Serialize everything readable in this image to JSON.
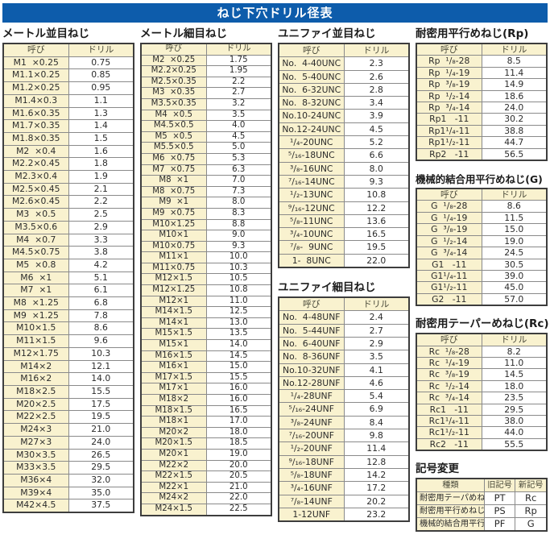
{
  "title": "ねじ下穴ドリル径表",
  "colors": {
    "title_bg": "#0d5cab",
    "cell_cream": "#f9f2cf",
    "border_dark": "#3d3d3d"
  },
  "tables": {
    "metric_coarse": {
      "heading": "メートル並目ねじ",
      "headers": [
        "呼び",
        "ドリル"
      ],
      "rows": [
        [
          "M1  ×0.25",
          "0.75"
        ],
        [
          "M1.1×0.25",
          "0.85"
        ],
        [
          "M1.2×0.25",
          "0.95"
        ],
        [
          "M1.4×0.3",
          "1.1"
        ],
        [
          "M1.6×0.35",
          "1.3"
        ],
        [
          "M1.7×0.35",
          "1.4"
        ],
        [
          "M1.8×0.35",
          "1.5"
        ],
        [
          "M2  ×0.4",
          "1.6"
        ],
        [
          "M2.2×0.45",
          "1.8"
        ],
        [
          "M2.3×0.4",
          "1.9"
        ],
        [
          "M2.5×0.45",
          "2.1"
        ],
        [
          "M2.6×0.45",
          "2.2"
        ],
        [
          "M3  ×0.5",
          "2.5"
        ],
        [
          "M3.5×0.6",
          "2.9"
        ],
        [
          "M4  ×0.7",
          "3.3"
        ],
        [
          "M4.5×0.75",
          "3.8"
        ],
        [
          "M5  ×0.8",
          "4.2"
        ],
        [
          "M6  ×1",
          "5.1"
        ],
        [
          "M7  ×1",
          "6.1"
        ],
        [
          "M8  ×1.25",
          "6.8"
        ],
        [
          "M9  ×1.25",
          "7.8"
        ],
        [
          "M10×1.5",
          "8.6"
        ],
        [
          "M11×1.5",
          "9.6"
        ],
        [
          "M12×1.75",
          "10.3"
        ],
        [
          "M14×2",
          "12.1"
        ],
        [
          "M16×2",
          "14.0"
        ],
        [
          "M18×2.5",
          "15.5"
        ],
        [
          "M20×2.5",
          "17.5"
        ],
        [
          "M22×2.5",
          "19.5"
        ],
        [
          "M24×3",
          "21.0"
        ],
        [
          "M27×3",
          "24.0"
        ],
        [
          "M30×3.5",
          "26.5"
        ],
        [
          "M33×3.5",
          "29.5"
        ],
        [
          "M36×4",
          "32.0"
        ],
        [
          "M39×4",
          "35.0"
        ],
        [
          "M42×4.5",
          "37.5"
        ]
      ]
    },
    "metric_fine": {
      "heading": "メートル細目ねじ",
      "headers": [
        "呼び",
        "ドリル"
      ],
      "rows": [
        [
          "M2  ×0.25",
          "1.75"
        ],
        [
          "M2.2×0.25",
          "1.95"
        ],
        [
          "M2.5×0.35",
          "2.2"
        ],
        [
          "M3  ×0.35",
          "2.7"
        ],
        [
          "M3.5×0.35",
          "3.2"
        ],
        [
          "M4  ×0.5",
          "3.5"
        ],
        [
          "M4.5×0.5",
          "4.0"
        ],
        [
          "M5  ×0.5",
          "4.5"
        ],
        [
          "M5.5×0.5",
          "5.0"
        ],
        [
          "M6  ×0.75",
          "5.3"
        ],
        [
          "M7  ×0.75",
          "6.3"
        ],
        [
          "M8  ×1",
          "7.0"
        ],
        [
          "M8  ×0.75",
          "7.3"
        ],
        [
          "M9  ×1",
          "8.0"
        ],
        [
          "M9  ×0.75",
          "8.3"
        ],
        [
          "M10×1.25",
          "8.8"
        ],
        [
          "M10×1",
          "9.0"
        ],
        [
          "M10×0.75",
          "9.3"
        ],
        [
          "M11×1",
          "10.0"
        ],
        [
          "M11×0.75",
          "10.3"
        ],
        [
          "M12×1.5",
          "10.5"
        ],
        [
          "M12×1.25",
          "10.8"
        ],
        [
          "M12×1",
          "11.0"
        ],
        [
          "M14×1.5",
          "12.5"
        ],
        [
          "M14×1",
          "13.0"
        ],
        [
          "M15×1.5",
          "13.5"
        ],
        [
          "M15×1",
          "14.0"
        ],
        [
          "M16×1.5",
          "14.5"
        ],
        [
          "M16×1",
          "15.0"
        ],
        [
          "M17×1.5",
          "15.5"
        ],
        [
          "M17×1",
          "16.0"
        ],
        [
          "M18×2",
          "16.0"
        ],
        [
          "M18×1.5",
          "16.5"
        ],
        [
          "M18×1",
          "17.0"
        ],
        [
          "M20×2",
          "18.0"
        ],
        [
          "M20×1.5",
          "18.5"
        ],
        [
          "M20×1",
          "19.0"
        ],
        [
          "M22×2",
          "20.0"
        ],
        [
          "M22×1.5",
          "20.5"
        ],
        [
          "M22×1",
          "21.0"
        ],
        [
          "M24×2",
          "22.0"
        ],
        [
          "M24×1.5",
          "22.5"
        ]
      ]
    },
    "unified_coarse": {
      "heading": "ユニファイ並目ねじ",
      "headers": [
        "呼び",
        "ドリル"
      ],
      "rows": [
        [
          "No.  4-40UNC",
          "2.3"
        ],
        [
          "No.  5-40UNC",
          "2.6"
        ],
        [
          "No.  6-32UNC",
          "2.8"
        ],
        [
          "No.  8-32UNC",
          "3.4"
        ],
        [
          "No.10-24UNC",
          "3.9"
        ],
        [
          "No.12-24UNC",
          "4.5"
        ],
        [
          "¹/₄-20UNC",
          "5.2"
        ],
        [
          "⁵/₁₆-18UNC",
          "6.6"
        ],
        [
          "³/₈-16UNC",
          "8.0"
        ],
        [
          "⁷/₁₆-14UNC",
          "9.3"
        ],
        [
          "¹/₂-13UNC",
          "10.8"
        ],
        [
          "⁹/₁₆-12UNC",
          "12.2"
        ],
        [
          "⁵/₈-11UNC",
          "13.6"
        ],
        [
          "³/₄-10UNC",
          "16.5"
        ],
        [
          "⁷/₈-  9UNC",
          "19.5"
        ],
        [
          "1-  8UNC",
          "22.0"
        ]
      ]
    },
    "unified_fine": {
      "heading": "ユニファイ細目ねじ",
      "headers": [
        "呼び",
        "ドリル"
      ],
      "rows": [
        [
          "No.  4-48UNF",
          "2.4"
        ],
        [
          "No.  5-44UNF",
          "2.7"
        ],
        [
          "No.  6-40UNF",
          "2.9"
        ],
        [
          "No.  8-36UNF",
          "3.5"
        ],
        [
          "No.10-32UNF",
          "4.1"
        ],
        [
          "No.12-28UNF",
          "4.6"
        ],
        [
          "¹/₄-28UNF",
          "5.4"
        ],
        [
          "⁵/₁₆-24UNF",
          "6.9"
        ],
        [
          "³/₈-24UNF",
          "8.4"
        ],
        [
          "⁷/₁₆-20UNF",
          "9.8"
        ],
        [
          "¹/₂-20UNF",
          "11.4"
        ],
        [
          "⁹/₁₆-18UNF",
          "12.8"
        ],
        [
          "⁵/₈-18UNF",
          "14.2"
        ],
        [
          "³/₄-16UNF",
          "17.2"
        ],
        [
          "⁷/₈-14UNF",
          "20.2"
        ],
        [
          "1-12UNF",
          "23.2"
        ]
      ]
    },
    "rp": {
      "heading": "耐密用平行めねじ(Rp)",
      "headers": [
        "呼び",
        "ドリル"
      ],
      "rows": [
        [
          "Rp  ¹/₈-28",
          "8.5"
        ],
        [
          "Rp  ¹/₄-19",
          "11.4"
        ],
        [
          "Rp  ³/₈-19",
          "14.9"
        ],
        [
          "Rp  ¹/₂-14",
          "18.6"
        ],
        [
          "Rp  ³/₄-14",
          "24.0"
        ],
        [
          "Rp1   -11",
          "30.2"
        ],
        [
          "Rp1¹/₄-11",
          "38.8"
        ],
        [
          "Rp1¹/₂-11",
          "44.7"
        ],
        [
          "Rp2   -11",
          "56.5"
        ]
      ]
    },
    "g": {
      "heading": "機械的結合用平行めねじ(G)",
      "headers": [
        "呼び",
        "ドリル"
      ],
      "rows": [
        [
          "G  ¹/₈-28",
          "8.6"
        ],
        [
          "G  ¹/₄-19",
          "11.5"
        ],
        [
          "G  ³/₈-19",
          "15.0"
        ],
        [
          "G  ¹/₂-14",
          "19.0"
        ],
        [
          "G  ³/₄-14",
          "24.5"
        ],
        [
          "G1   -11",
          "30.5"
        ],
        [
          "G1¹/₄-11",
          "39.0"
        ],
        [
          "G1¹/₂-11",
          "45.0"
        ],
        [
          "G2   -11",
          "57.0"
        ]
      ]
    },
    "rc": {
      "heading": "耐密用テーパーめねじ(Rc)",
      "headers": [
        "呼び",
        "ドリル"
      ],
      "rows": [
        [
          "Rc  ¹/₈-28",
          "8.2"
        ],
        [
          "Rc  ¹/₄-19",
          "11.0"
        ],
        [
          "Rc  ³/₈-19",
          "14.5"
        ],
        [
          "Rc  ¹/₂-14",
          "18.0"
        ],
        [
          "Rc  ³/₄-14",
          "23.5"
        ],
        [
          "Rc1   -11",
          "29.5"
        ],
        [
          "Rc1¹/₄-11",
          "38.0"
        ],
        [
          "Rc1¹/₂-11",
          "44.0"
        ],
        [
          "Rc2   -11",
          "55.5"
        ]
      ]
    },
    "symbol_change": {
      "heading": "記号変更",
      "headers": [
        "種類",
        "旧記号",
        "新記号"
      ],
      "rows": [
        [
          "耐密用テーパめねじ",
          "PT",
          "Rc"
        ],
        [
          "耐密用平行めねじ",
          "PS",
          "Rp"
        ],
        [
          "機械的結合用平行めねじ",
          "PF",
          "G"
        ]
      ]
    }
  }
}
